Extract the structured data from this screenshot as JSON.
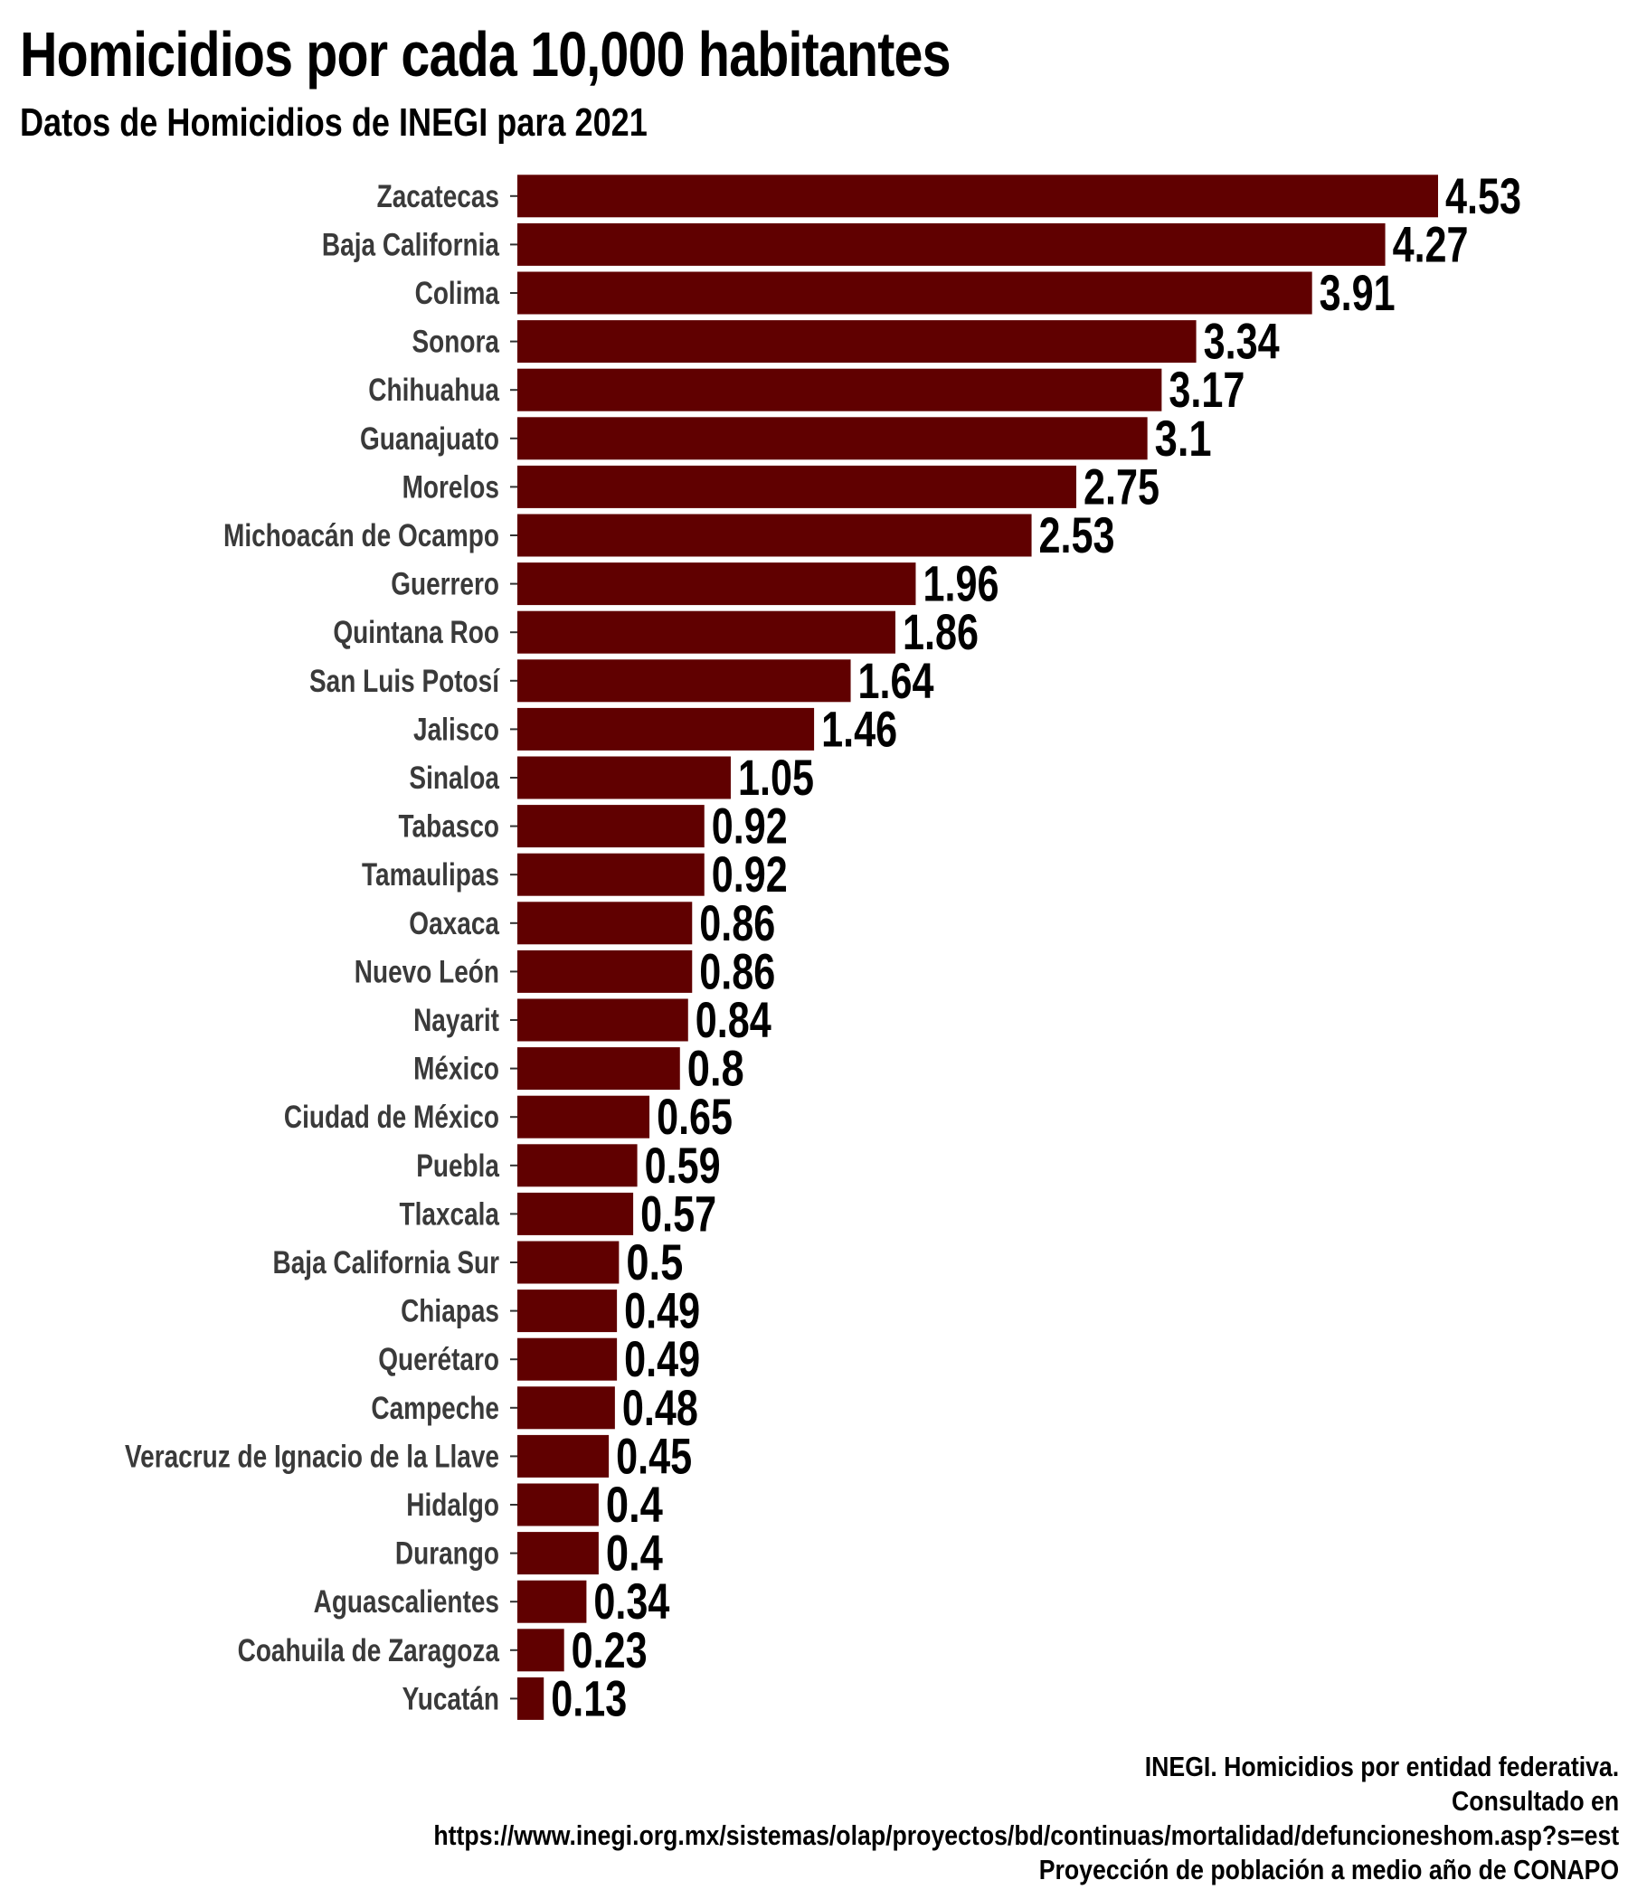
{
  "title": "Homicidios por cada 10,000 habitantes",
  "subtitle": "Datos de Homicidios de INEGI para 2021",
  "caption": [
    "INEGI. Homicidios por entidad federativa.",
    "Consultado en",
    "https://www.inegi.org.mx/sistemas/olap/proyectos/bd/continuas/mortalidad/defuncioneshom.asp?s=est",
    "Proyección de población a medio año de CONAPO"
  ],
  "colors": {
    "bar": "#600000",
    "value_label": "#000000",
    "category_label": "#3a3a3a"
  },
  "chart_data": {
    "type": "bar",
    "orientation": "horizontal",
    "title": "Homicidios por cada 10,000 habitantes",
    "subtitle": "Datos de Homicidios de INEGI para 2021",
    "xlabel": "",
    "ylabel": "",
    "grid": false,
    "xlim": [
      0,
      4.53
    ],
    "categories": [
      "Zacatecas",
      "Baja California",
      "Colima",
      "Sonora",
      "Chihuahua",
      "Guanajuato",
      "Morelos",
      "Michoacán de Ocampo",
      "Guerrero",
      "Quintana Roo",
      "San Luis Potosí",
      "Jalisco",
      "Sinaloa",
      "Tabasco",
      "Tamaulipas",
      "Oaxaca",
      "Nuevo León",
      "Nayarit",
      "México",
      "Ciudad de México",
      "Puebla",
      "Tlaxcala",
      "Baja California Sur",
      "Chiapas",
      "Querétaro",
      "Campeche",
      "Veracruz de Ignacio de la Llave",
      "Hidalgo",
      "Durango",
      "Aguascalientes",
      "Coahuila de Zaragoza",
      "Yucatán"
    ],
    "values": [
      4.53,
      4.27,
      3.91,
      3.34,
      3.17,
      3.1,
      2.75,
      2.53,
      1.96,
      1.86,
      1.64,
      1.46,
      1.05,
      0.92,
      0.92,
      0.86,
      0.86,
      0.84,
      0.8,
      0.65,
      0.59,
      0.57,
      0.5,
      0.49,
      0.49,
      0.48,
      0.45,
      0.4,
      0.4,
      0.34,
      0.23,
      0.13
    ],
    "data_labels": [
      "4.53",
      "4.27",
      "3.91",
      "3.34",
      "3.17",
      "3.1",
      "2.75",
      "2.53",
      "1.96",
      "1.86",
      "1.64",
      "1.46",
      "1.05",
      "0.92",
      "0.92",
      "0.86",
      "0.86",
      "0.84",
      "0.8",
      "0.65",
      "0.59",
      "0.57",
      "0.5",
      "0.49",
      "0.49",
      "0.48",
      "0.45",
      "0.4",
      "0.4",
      "0.34",
      "0.23",
      "0.13"
    ]
  }
}
